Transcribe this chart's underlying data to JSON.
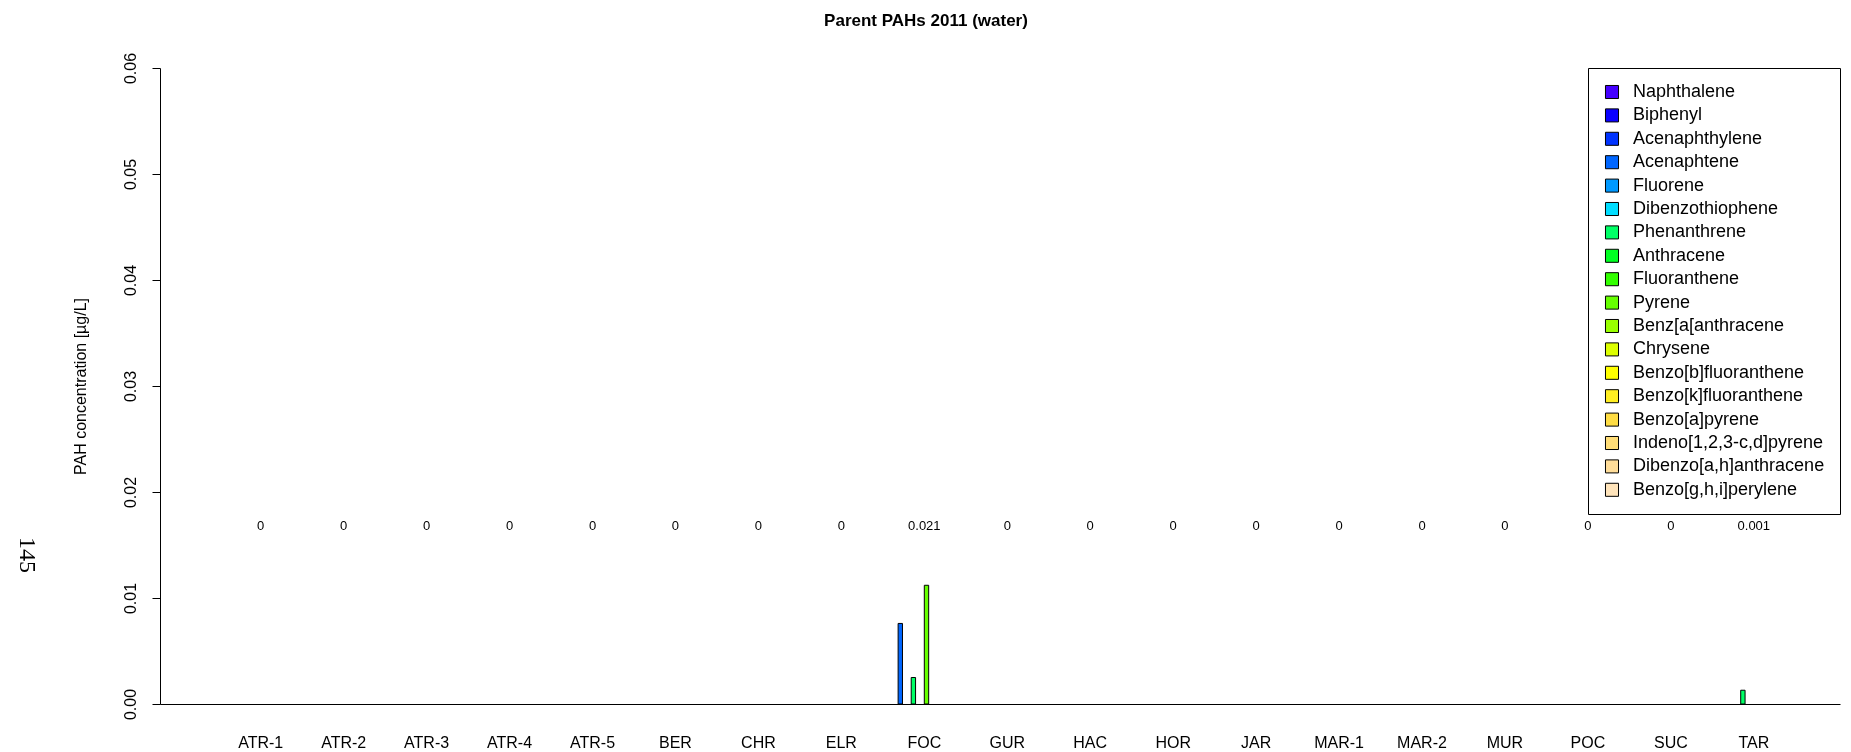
{
  "chart_data": {
    "type": "bar",
    "title": "Parent PAHs 2011 (water)",
    "ylabel": "PAH concentration [µg/L]",
    "categories": [
      "ATR-1",
      "ATR-2",
      "ATR-3",
      "ATR-4",
      "ATR-5",
      "BER",
      "CHR",
      "ELR",
      "FOC",
      "GUR",
      "HAC",
      "HOR",
      "JAR",
      "MAR-1",
      "MAR-2",
      "MUR",
      "POC",
      "SUC",
      "TAR"
    ],
    "series": [
      {
        "name": "Naphthalene",
        "color": "#4400ff",
        "values": [
          0,
          0,
          0,
          0,
          0,
          0,
          0,
          0,
          0,
          0,
          0,
          0,
          0,
          0,
          0,
          0,
          0,
          0,
          0
        ]
      },
      {
        "name": "Biphenyl",
        "color": "#0a00ff",
        "values": [
          0,
          0,
          0,
          0,
          0,
          0,
          0,
          0,
          0,
          0,
          0,
          0,
          0,
          0,
          0,
          0,
          0,
          0,
          0
        ]
      },
      {
        "name": "Acenaphthylene",
        "color": "#0033ff",
        "values": [
          0,
          0,
          0,
          0,
          0,
          0,
          0,
          0,
          0,
          0,
          0,
          0,
          0,
          0,
          0,
          0,
          0,
          0,
          0
        ]
      },
      {
        "name": "Acenaphtene",
        "color": "#0066ff",
        "values": [
          0,
          0,
          0,
          0,
          0,
          0,
          0,
          0,
          0.0076,
          0,
          0,
          0,
          0,
          0,
          0,
          0,
          0,
          0,
          0
        ]
      },
      {
        "name": "Fluorene",
        "color": "#0099ff",
        "values": [
          0,
          0,
          0,
          0,
          0,
          0,
          0,
          0,
          0,
          0,
          0,
          0,
          0,
          0,
          0,
          0,
          0,
          0,
          0
        ]
      },
      {
        "name": "Dibenzothiophene",
        "color": "#00ddff",
        "values": [
          0,
          0,
          0,
          0,
          0,
          0,
          0,
          0,
          0,
          0,
          0,
          0,
          0,
          0,
          0,
          0,
          0,
          0,
          0
        ]
      },
      {
        "name": "Phenanthrene",
        "color": "#00ff66",
        "values": [
          0,
          0,
          0,
          0,
          0,
          0,
          0,
          0,
          0.0025,
          0,
          0,
          0,
          0,
          0,
          0,
          0,
          0,
          0,
          0.0013
        ]
      },
      {
        "name": "Anthracene",
        "color": "#00ff22",
        "values": [
          0,
          0,
          0,
          0,
          0,
          0,
          0,
          0,
          0,
          0,
          0,
          0,
          0,
          0,
          0,
          0,
          0,
          0,
          0
        ]
      },
      {
        "name": "Fluoranthene",
        "color": "#33ff00",
        "values": [
          0,
          0,
          0,
          0,
          0,
          0,
          0,
          0,
          0,
          0,
          0,
          0,
          0,
          0,
          0,
          0,
          0,
          0,
          0
        ]
      },
      {
        "name": "Pyrene",
        "color": "#66ff00",
        "values": [
          0,
          0,
          0,
          0,
          0,
          0,
          0,
          0,
          0.0112,
          0,
          0,
          0,
          0,
          0,
          0,
          0,
          0,
          0,
          0
        ]
      },
      {
        "name": "Benz[a[anthracene",
        "color": "#99ff00",
        "values": [
          0,
          0,
          0,
          0,
          0,
          0,
          0,
          0,
          0,
          0,
          0,
          0,
          0,
          0,
          0,
          0,
          0,
          0,
          0
        ]
      },
      {
        "name": "Chrysene",
        "color": "#ddff00",
        "values": [
          0,
          0,
          0,
          0,
          0,
          0,
          0,
          0,
          0,
          0,
          0,
          0,
          0,
          0,
          0,
          0,
          0,
          0,
          0
        ]
      },
      {
        "name": "Benzo[b]fluoranthene",
        "color": "#ffff00",
        "values": [
          0,
          0,
          0,
          0,
          0,
          0,
          0,
          0,
          0,
          0,
          0,
          0,
          0,
          0,
          0,
          0,
          0,
          0,
          0
        ]
      },
      {
        "name": "Benzo[k]fluoranthene",
        "color": "#ffee22",
        "values": [
          0,
          0,
          0,
          0,
          0,
          0,
          0,
          0,
          0,
          0,
          0,
          0,
          0,
          0,
          0,
          0,
          0,
          0,
          0
        ]
      },
      {
        "name": "Benzo[a]pyrene",
        "color": "#ffdd44",
        "values": [
          0,
          0,
          0,
          0,
          0,
          0,
          0,
          0,
          0,
          0,
          0,
          0,
          0,
          0,
          0,
          0,
          0,
          0,
          0
        ]
      },
      {
        "name": "Indeno[1,2,3-c,d]pyrene",
        "color": "#ffdd77",
        "values": [
          0,
          0,
          0,
          0,
          0,
          0,
          0,
          0,
          0,
          0,
          0,
          0,
          0,
          0,
          0,
          0,
          0,
          0,
          0
        ]
      },
      {
        "name": "Dibenzo[a,h]anthracene",
        "color": "#ffdd99",
        "values": [
          0,
          0,
          0,
          0,
          0,
          0,
          0,
          0,
          0,
          0,
          0,
          0,
          0,
          0,
          0,
          0,
          0,
          0,
          0
        ]
      },
      {
        "name": "Benzo[g,h,i]perylene",
        "color": "#ffe4bb",
        "values": [
          0,
          0,
          0,
          0,
          0,
          0,
          0,
          0,
          0,
          0,
          0,
          0,
          0,
          0,
          0,
          0,
          0,
          0,
          0
        ]
      }
    ],
    "ylim": [
      0,
      0.06
    ],
    "yticks": [
      {
        "value": 0,
        "label": "0.00"
      },
      0.01,
      0.02,
      0.03,
      0.04,
      0.05,
      0.06
    ],
    "legend": "top right",
    "annotations": [
      "0",
      "0",
      "0",
      "0",
      "0",
      "0",
      "0",
      "0",
      "0.021",
      "0",
      "0",
      "0",
      "0",
      "0",
      "0",
      "0",
      "0",
      "0",
      "0.001",
      "145"
    ]
  }
}
